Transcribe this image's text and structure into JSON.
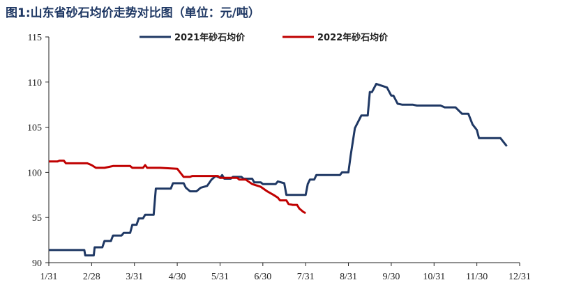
{
  "chart_data": {
    "type": "line",
    "title": "图1:山东省砂石均价走势对比图（单位：元/吨）",
    "xlabel": "",
    "ylabel": "",
    "x_ticks": [
      "1/31",
      "2/28",
      "3/31",
      "4/30",
      "5/31",
      "6/30",
      "7/31",
      "8/31",
      "9/30",
      "10/31",
      "11/30",
      "12/31"
    ],
    "y_ticks": [
      90,
      95,
      100,
      105,
      110,
      115
    ],
    "ylim": [
      90,
      115
    ],
    "xlim": [
      0,
      11
    ],
    "grid": false,
    "legend_position": "top",
    "series": [
      {
        "name": "2021年砂石均价",
        "color": "#1f3864",
        "points": [
          [
            0,
            91.4
          ],
          [
            0.83,
            91.4
          ],
          [
            0.85,
            90.8
          ],
          [
            1.05,
            90.8
          ],
          [
            1.07,
            91.7
          ],
          [
            1.25,
            91.7
          ],
          [
            1.3,
            92.4
          ],
          [
            1.45,
            92.4
          ],
          [
            1.5,
            93.0
          ],
          [
            1.7,
            93.0
          ],
          [
            1.75,
            93.3
          ],
          [
            1.9,
            93.3
          ],
          [
            1.95,
            94.2
          ],
          [
            2.05,
            94.2
          ],
          [
            2.1,
            94.9
          ],
          [
            2.2,
            94.9
          ],
          [
            2.25,
            95.3
          ],
          [
            2.45,
            95.3
          ],
          [
            2.5,
            98.2
          ],
          [
            2.85,
            98.2
          ],
          [
            2.9,
            98.8
          ],
          [
            3.15,
            98.8
          ],
          [
            3.2,
            98.3
          ],
          [
            3.3,
            97.9
          ],
          [
            3.45,
            97.9
          ],
          [
            3.55,
            98.3
          ],
          [
            3.7,
            98.5
          ],
          [
            3.8,
            99.2
          ],
          [
            3.9,
            99.6
          ],
          [
            4.0,
            99.4
          ],
          [
            4.05,
            99.7
          ],
          [
            4.1,
            99.3
          ],
          [
            4.25,
            99.3
          ],
          [
            4.3,
            99.5
          ],
          [
            4.5,
            99.5
          ],
          [
            4.55,
            99.3
          ],
          [
            4.75,
            99.3
          ],
          [
            4.8,
            98.9
          ],
          [
            4.95,
            98.9
          ],
          [
            5.0,
            98.7
          ],
          [
            5.3,
            98.7
          ],
          [
            5.35,
            99.0
          ],
          [
            5.5,
            98.8
          ],
          [
            5.55,
            97.5
          ],
          [
            6.0,
            97.5
          ],
          [
            6.05,
            98.7
          ],
          [
            6.1,
            99.2
          ],
          [
            6.2,
            99.2
          ],
          [
            6.25,
            99.7
          ],
          [
            6.8,
            99.7
          ],
          [
            6.85,
            100.0
          ],
          [
            7.0,
            100.0
          ],
          [
            7.05,
            101.8
          ],
          [
            7.15,
            104.9
          ],
          [
            7.3,
            106.3
          ],
          [
            7.45,
            106.3
          ],
          [
            7.5,
            108.9
          ],
          [
            7.55,
            108.9
          ],
          [
            7.65,
            109.8
          ],
          [
            7.9,
            109.4
          ],
          [
            8.0,
            108.5
          ],
          [
            8.05,
            108.5
          ],
          [
            8.15,
            107.6
          ],
          [
            8.25,
            107.5
          ],
          [
            8.5,
            107.5
          ],
          [
            8.6,
            107.4
          ],
          [
            9.15,
            107.4
          ],
          [
            9.25,
            107.2
          ],
          [
            9.5,
            107.2
          ],
          [
            9.65,
            106.5
          ],
          [
            9.8,
            106.5
          ],
          [
            9.9,
            105.3
          ],
          [
            10.0,
            104.7
          ],
          [
            10.05,
            103.8
          ],
          [
            10.55,
            103.8
          ],
          [
            10.65,
            103.2
          ],
          [
            10.7,
            102.9
          ]
        ]
      },
      {
        "name": "2022年砂石均价",
        "color": "#c00000",
        "points": [
          [
            0,
            101.2
          ],
          [
            0.2,
            101.2
          ],
          [
            0.25,
            101.3
          ],
          [
            0.35,
            101.3
          ],
          [
            0.4,
            101.0
          ],
          [
            0.9,
            101.0
          ],
          [
            1.0,
            100.8
          ],
          [
            1.1,
            100.5
          ],
          [
            1.3,
            100.5
          ],
          [
            1.4,
            100.6
          ],
          [
            1.5,
            100.7
          ],
          [
            1.9,
            100.7
          ],
          [
            1.95,
            100.5
          ],
          [
            2.2,
            100.5
          ],
          [
            2.25,
            100.8
          ],
          [
            2.3,
            100.5
          ],
          [
            2.6,
            100.5
          ],
          [
            3.0,
            100.4
          ],
          [
            3.1,
            99.8
          ],
          [
            3.15,
            99.5
          ],
          [
            3.3,
            99.5
          ],
          [
            3.35,
            99.6
          ],
          [
            3.95,
            99.6
          ],
          [
            4.0,
            99.4
          ],
          [
            4.4,
            99.4
          ],
          [
            4.45,
            99.2
          ],
          [
            4.6,
            99.2
          ],
          [
            4.75,
            98.7
          ],
          [
            4.95,
            98.4
          ],
          [
            5.1,
            97.9
          ],
          [
            5.25,
            97.5
          ],
          [
            5.35,
            97.2
          ],
          [
            5.4,
            96.9
          ],
          [
            5.55,
            96.9
          ],
          [
            5.6,
            96.5
          ],
          [
            5.7,
            96.4
          ],
          [
            5.8,
            96.4
          ],
          [
            5.85,
            96.0
          ],
          [
            5.9,
            95.8
          ],
          [
            5.95,
            95.6
          ],
          [
            6.0,
            95.5
          ]
        ]
      }
    ]
  }
}
